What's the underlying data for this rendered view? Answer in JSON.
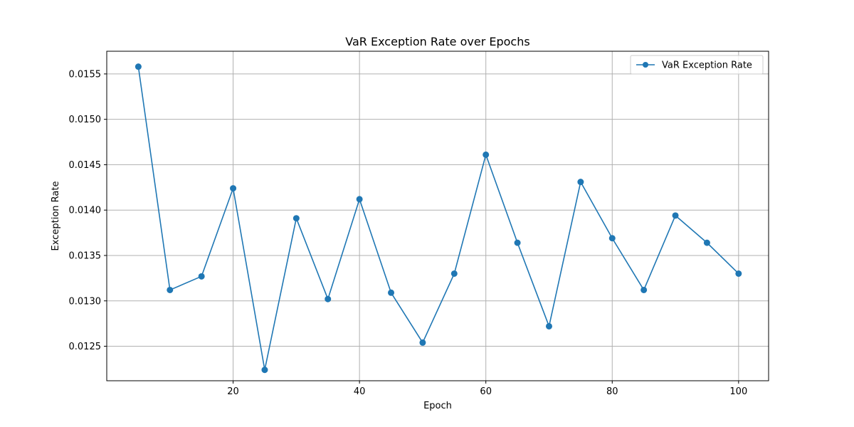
{
  "chart_data": {
    "type": "line",
    "title": "VaR Exception Rate over Epochs",
    "xlabel": "Epoch",
    "ylabel": "Exception Rate",
    "xlim": [
      0,
      104.75
    ],
    "ylim": [
      0.01212,
      0.01575
    ],
    "xticks": [
      20,
      40,
      60,
      80,
      100
    ],
    "yticks": [
      0.0125,
      0.013,
      0.0135,
      0.014,
      0.0145,
      0.015,
      0.0155
    ],
    "xtick_labels": [
      "20",
      "40",
      "60",
      "80",
      "100"
    ],
    "ytick_labels": [
      "0.0125",
      "0.0130",
      "0.0135",
      "0.0140",
      "0.0145",
      "0.0150",
      "0.0155"
    ],
    "grid": true,
    "legend_position": "top-right",
    "series": [
      {
        "name": "VaR Exception Rate",
        "color": "#1f77b4",
        "marker": "circle",
        "x": [
          5,
          10,
          15,
          20,
          25,
          30,
          35,
          40,
          45,
          50,
          55,
          60,
          65,
          70,
          75,
          80,
          85,
          90,
          95,
          100
        ],
        "y": [
          0.01558,
          0.01312,
          0.01327,
          0.01424,
          0.01224,
          0.01391,
          0.01302,
          0.01412,
          0.01309,
          0.01254,
          0.0133,
          0.01461,
          0.01364,
          0.01272,
          0.01431,
          0.01369,
          0.01312,
          0.01394,
          0.01364,
          0.0133
        ]
      }
    ]
  }
}
